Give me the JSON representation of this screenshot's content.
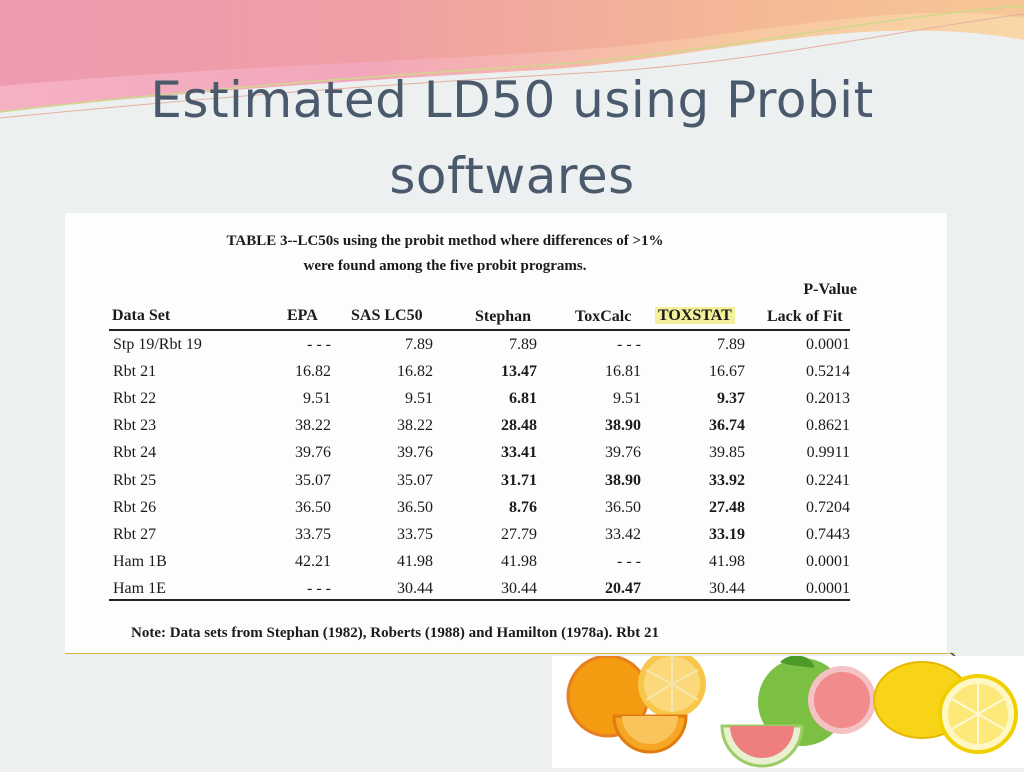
{
  "slide": {
    "title_line1": "Estimated LD50 using Probit",
    "title_line2": "softwares"
  },
  "table": {
    "caption_line1": "TABLE 3--LC50s using the probit method where differences of >1%",
    "caption_line2": "were found  among the five probit programs.",
    "pvalue_header_top": "P-Value",
    "headers": [
      "Data Set",
      "EPA",
      "SAS LC50",
      "Stephan",
      "ToxCalc",
      "TOXSTAT",
      "Lack of Fit"
    ],
    "rows": [
      {
        "cells": [
          "Stp 19/Rbt 19",
          "- - -",
          "7.89",
          "7.89",
          "- - -",
          "7.89",
          "0.0001"
        ],
        "bold": []
      },
      {
        "cells": [
          "Rbt 21",
          "16.82",
          "16.82",
          "13.47",
          "16.81",
          "16.67",
          "0.5214"
        ],
        "bold": [
          3
        ]
      },
      {
        "cells": [
          "Rbt 22",
          "9.51",
          "9.51",
          "6.81",
          "9.51",
          "9.37",
          "0.2013"
        ],
        "bold": [
          3,
          5
        ]
      },
      {
        "cells": [
          "Rbt 23",
          "38.22",
          "38.22",
          "28.48",
          "38.90",
          "36.74",
          "0.8621"
        ],
        "bold": [
          3,
          4,
          5
        ]
      },
      {
        "cells": [
          "Rbt 24",
          "39.76",
          "39.76",
          "33.41",
          "39.76",
          "39.85",
          "0.9911"
        ],
        "bold": [
          3
        ]
      },
      {
        "cells": [
          "Rbt 25",
          "35.07",
          "35.07",
          "31.71",
          "38.90",
          "33.92",
          "0.2241"
        ],
        "bold": [
          3,
          4,
          5
        ]
      },
      {
        "cells": [
          "Rbt 26",
          "36.50",
          "36.50",
          "8.76",
          "36.50",
          "27.48",
          "0.7204"
        ],
        "bold": [
          3,
          5
        ]
      },
      {
        "cells": [
          "Rbt 27",
          "33.75",
          "33.75",
          "27.79",
          "33.42",
          "33.19",
          "0.7443"
        ],
        "bold": [
          5
        ]
      },
      {
        "cells": [
          "Ham 1B",
          "42.21",
          "41.98",
          "41.98",
          "- - -",
          "41.98",
          "0.0001"
        ],
        "bold": []
      },
      {
        "cells": [
          "Ham 1E",
          "- - -",
          "30.44",
          "30.44",
          "20.47",
          "30.44",
          "0.0001"
        ],
        "bold": [
          4
        ]
      }
    ],
    "note": "Note:  Data sets from Stephan (1982), Roberts (1988) and Hamilton (1978a).  Rbt 21"
  },
  "colors": {
    "title": "#4a5a6c",
    "highlight": "#f3ef9a",
    "divider": "#d6b84a"
  },
  "icons": [
    "orange-icon",
    "grapefruit-icon",
    "lemon-icon"
  ]
}
